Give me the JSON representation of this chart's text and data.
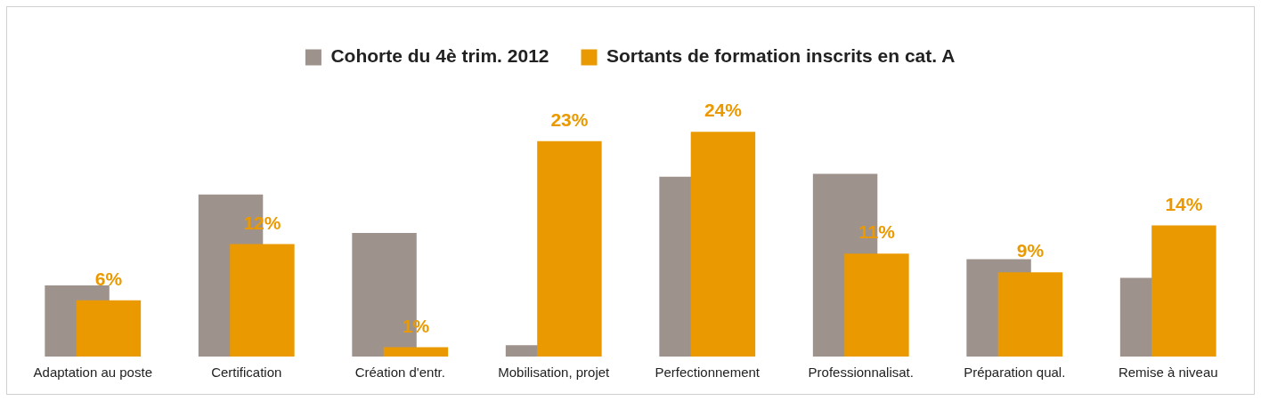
{
  "chart_data": {
    "type": "bar",
    "categories": [
      "Adaptation au poste",
      "Certification",
      "Création d'entr.",
      "Mobilisation, projet",
      "Perfectionnement",
      "Professionnalisat.",
      "Préparation qual.",
      "Remise à niveau"
    ],
    "series": [
      {
        "name": "Cohorte du 4è trim. 2012",
        "color": "#9e928d",
        "values": [
          7.6,
          17.3,
          13.2,
          1.2,
          19.2,
          19.5,
          10.4,
          8.4
        ]
      },
      {
        "name": "Sortants de formation inscrits en cat. A",
        "color": "#ea9a00",
        "values": [
          6,
          12,
          1,
          23,
          24,
          11,
          9,
          14
        ],
        "value_labels": [
          "6%",
          "12%",
          "1%",
          "23%",
          "24%",
          "11%",
          "9%",
          "14%"
        ]
      }
    ],
    "grid": false,
    "legend": "top"
  }
}
